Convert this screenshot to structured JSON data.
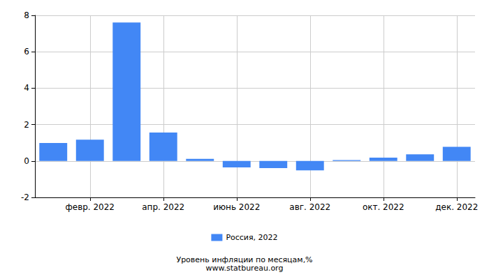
{
  "chart_data": {
    "type": "bar",
    "title": "Уровень инфляции по месяцам,%",
    "subtitle": "www.statbureau.org",
    "categories": [
      null,
      "февр. 2022",
      null,
      "апр. 2022",
      null,
      "июнь 2022",
      null,
      "авг. 2022",
      null,
      "окт. 2022",
      null,
      "дек. 2022"
    ],
    "series": [
      {
        "name": "Россия, 2022",
        "color": "#4287f5",
        "values": [
          0.99,
          1.17,
          7.61,
          1.56,
          0.12,
          -0.35,
          -0.39,
          -0.52,
          0.05,
          0.18,
          0.37,
          0.78
        ]
      }
    ],
    "ylim": [
      -2,
      8
    ],
    "yticks": [
      -2,
      0,
      2,
      4,
      6,
      8
    ],
    "grid": true,
    "legend": "bottom"
  }
}
